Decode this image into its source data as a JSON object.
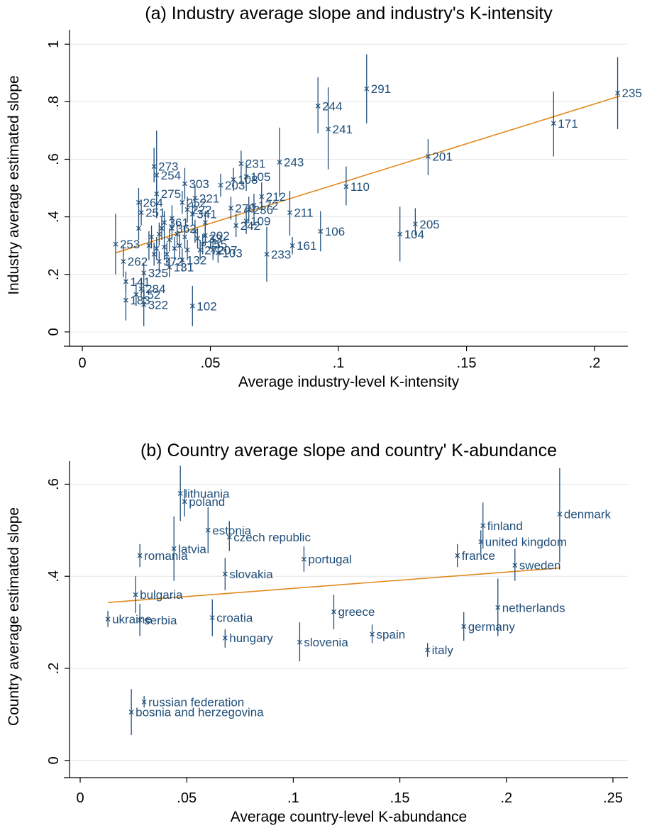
{
  "chart_data": [
    {
      "type": "scatter",
      "title": "(a) Industry average slope and industry's K-intensity",
      "xlabel": "Average industry-level K-intensity",
      "ylabel": "Industry average estimated slope",
      "xlim": [
        -0.005,
        0.213
      ],
      "ylim": [
        -0.03,
        1.05
      ],
      "xticks": [
        0,
        0.05,
        0.1,
        0.15,
        0.2
      ],
      "xtick_labels": [
        "0",
        ".05",
        ".1",
        ".15",
        ".2"
      ],
      "yticks": [
        0,
        0.2,
        0.4,
        0.6,
        0.8,
        1
      ],
      "ytick_labels": [
        "0",
        ".2",
        ".4",
        ".6",
        ".8",
        "1"
      ],
      "grid": true,
      "colors": {
        "points": "#1f4e79",
        "fit": "#e08a1e",
        "grid": "#e6e6e6"
      },
      "fit_line": {
        "x": [
          0.013,
          0.21
        ],
        "y": [
          0.275,
          0.82
        ]
      },
      "points": [
        {
          "label": "235",
          "x": 0.209,
          "y": 0.83,
          "lo": 0.705,
          "hi": 0.955
        },
        {
          "label": "171",
          "x": 0.184,
          "y": 0.725,
          "lo": 0.61,
          "hi": 0.835
        },
        {
          "label": "201",
          "x": 0.135,
          "y": 0.61,
          "lo": 0.545,
          "hi": 0.67
        },
        {
          "label": "205",
          "x": 0.13,
          "y": 0.375,
          "lo": 0.335,
          "hi": 0.43
        },
        {
          "label": "104",
          "x": 0.124,
          "y": 0.34,
          "lo": 0.245,
          "hi": 0.435
        },
        {
          "label": "291",
          "x": 0.111,
          "y": 0.845,
          "lo": 0.725,
          "hi": 0.965
        },
        {
          "label": "110",
          "x": 0.103,
          "y": 0.505,
          "lo": 0.44,
          "hi": 0.575
        },
        {
          "label": "244",
          "x": 0.092,
          "y": 0.785,
          "lo": 0.69,
          "hi": 0.885
        },
        {
          "label": "241",
          "x": 0.096,
          "y": 0.705,
          "lo": 0.565,
          "hi": 0.85
        },
        {
          "label": "106",
          "x": 0.093,
          "y": 0.35,
          "lo": 0.28,
          "hi": 0.42
        },
        {
          "label": "211",
          "x": 0.081,
          "y": 0.415,
          "lo": 0.335,
          "hi": 0.49
        },
        {
          "label": "161",
          "x": 0.082,
          "y": 0.3,
          "lo": 0.27,
          "hi": 0.33
        },
        {
          "label": "243",
          "x": 0.077,
          "y": 0.59,
          "lo": 0.47,
          "hi": 0.71
        },
        {
          "label": "233",
          "x": 0.072,
          "y": 0.27,
          "lo": 0.175,
          "hi": 0.365
        },
        {
          "label": "212",
          "x": 0.07,
          "y": 0.47,
          "lo": 0.42,
          "hi": 0.52
        },
        {
          "label": "172",
          "x": 0.067,
          "y": 0.44,
          "lo": 0.4,
          "hi": 0.48
        },
        {
          "label": "236",
          "x": 0.065,
          "y": 0.425,
          "lo": 0.38,
          "hi": 0.47
        },
        {
          "label": "109",
          "x": 0.064,
          "y": 0.385,
          "lo": 0.34,
          "hi": 0.43
        },
        {
          "label": "231",
          "x": 0.062,
          "y": 0.585,
          "lo": 0.535,
          "hi": 0.63
        },
        {
          "label": "105",
          "x": 0.064,
          "y": 0.54,
          "lo": 0.49,
          "hi": 0.59
        },
        {
          "label": "108",
          "x": 0.059,
          "y": 0.53,
          "lo": 0.49,
          "hi": 0.57
        },
        {
          "label": "203",
          "x": 0.054,
          "y": 0.51,
          "lo": 0.47,
          "hi": 0.55
        },
        {
          "label": "303",
          "x": 0.04,
          "y": 0.515,
          "lo": 0.46,
          "hi": 0.57
        },
        {
          "label": "279",
          "x": 0.058,
          "y": 0.43,
          "lo": 0.39,
          "hi": 0.47
        },
        {
          "label": "242",
          "x": 0.06,
          "y": 0.37,
          "lo": 0.33,
          "hi": 0.41
        },
        {
          "label": "221",
          "x": 0.044,
          "y": 0.465,
          "lo": 0.42,
          "hi": 0.51
        },
        {
          "label": "222",
          "x": 0.041,
          "y": 0.425,
          "lo": 0.38,
          "hi": 0.47
        },
        {
          "label": "273",
          "x": 0.028,
          "y": 0.575,
          "lo": 0.52,
          "hi": 0.64
        },
        {
          "label": "254",
          "x": 0.029,
          "y": 0.545,
          "lo": 0.395,
          "hi": 0.7
        },
        {
          "label": "275",
          "x": 0.029,
          "y": 0.48,
          "lo": 0.43,
          "hi": 0.53
        },
        {
          "label": "264",
          "x": 0.022,
          "y": 0.45,
          "lo": 0.4,
          "hi": 0.5
        },
        {
          "label": "251",
          "x": 0.023,
          "y": 0.415,
          "lo": 0.37,
          "hi": 0.46
        },
        {
          "label": "252",
          "x": 0.039,
          "y": 0.45,
          "lo": 0.41,
          "hi": 0.49
        },
        {
          "label": "341",
          "x": 0.043,
          "y": 0.41,
          "lo": 0.37,
          "hi": 0.45
        },
        {
          "label": "361",
          "x": 0.032,
          "y": 0.38,
          "lo": 0.34,
          "hi": 0.42
        },
        {
          "label": "362",
          "x": 0.035,
          "y": 0.36,
          "lo": 0.32,
          "hi": 0.4
        },
        {
          "label": "202",
          "x": 0.048,
          "y": 0.335,
          "lo": 0.3,
          "hi": 0.37
        },
        {
          "label": "133",
          "x": 0.045,
          "y": 0.325,
          "lo": 0.29,
          "hi": 0.36
        },
        {
          "label": "155",
          "x": 0.047,
          "y": 0.305,
          "lo": 0.27,
          "hi": 0.34
        },
        {
          "label": "272",
          "x": 0.046,
          "y": 0.285,
          "lo": 0.25,
          "hi": 0.32
        },
        {
          "label": "207",
          "x": 0.051,
          "y": 0.285,
          "lo": 0.25,
          "hi": 0.32
        },
        {
          "label": "103",
          "x": 0.053,
          "y": 0.275,
          "lo": 0.24,
          "hi": 0.31
        },
        {
          "label": "253",
          "x": 0.013,
          "y": 0.305,
          "lo": 0.2,
          "hi": 0.41
        },
        {
          "label": "262",
          "x": 0.016,
          "y": 0.245,
          "lo": 0.19,
          "hi": 0.3
        },
        {
          "label": "372",
          "x": 0.03,
          "y": 0.245,
          "lo": 0.21,
          "hi": 0.28
        },
        {
          "label": "132",
          "x": 0.039,
          "y": 0.25,
          "lo": 0.21,
          "hi": 0.29
        },
        {
          "label": "131",
          "x": 0.034,
          "y": 0.225,
          "lo": 0.19,
          "hi": 0.26
        },
        {
          "label": "325",
          "x": 0.024,
          "y": 0.205,
          "lo": 0.17,
          "hi": 0.24
        },
        {
          "label": "141",
          "x": 0.017,
          "y": 0.175,
          "lo": 0.14,
          "hi": 0.21
        },
        {
          "label": "284",
          "x": 0.023,
          "y": 0.15,
          "lo": 0.12,
          "hi": 0.18
        },
        {
          "label": "183",
          "x": 0.017,
          "y": 0.11,
          "lo": 0.04,
          "hi": 0.18
        },
        {
          "label": "152",
          "x": 0.021,
          "y": 0.13,
          "lo": 0.09,
          "hi": 0.17
        },
        {
          "label": "322",
          "x": 0.024,
          "y": 0.095,
          "lo": 0.02,
          "hi": 0.17
        },
        {
          "label": "102",
          "x": 0.043,
          "y": 0.09,
          "lo": 0.02,
          "hi": 0.16
        },
        {
          "label": "",
          "x": 0.022,
          "y": 0.36,
          "lo": 0.32,
          "hi": 0.4
        },
        {
          "label": "",
          "x": 0.026,
          "y": 0.3,
          "lo": 0.25,
          "hi": 0.35
        },
        {
          "label": "",
          "x": 0.027,
          "y": 0.33,
          "lo": 0.29,
          "hi": 0.37
        },
        {
          "label": "",
          "x": 0.028,
          "y": 0.27,
          "lo": 0.23,
          "hi": 0.31
        },
        {
          "label": "",
          "x": 0.029,
          "y": 0.29,
          "lo": 0.25,
          "hi": 0.33
        },
        {
          "label": "",
          "x": 0.03,
          "y": 0.34,
          "lo": 0.3,
          "hi": 0.38
        },
        {
          "label": "",
          "x": 0.031,
          "y": 0.36,
          "lo": 0.32,
          "hi": 0.4
        },
        {
          "label": "",
          "x": 0.032,
          "y": 0.295,
          "lo": 0.25,
          "hi": 0.34
        },
        {
          "label": "",
          "x": 0.033,
          "y": 0.27,
          "lo": 0.23,
          "hi": 0.31
        },
        {
          "label": "",
          "x": 0.034,
          "y": 0.32,
          "lo": 0.28,
          "hi": 0.36
        },
        {
          "label": "",
          "x": 0.035,
          "y": 0.395,
          "lo": 0.35,
          "hi": 0.44
        },
        {
          "label": "",
          "x": 0.036,
          "y": 0.29,
          "lo": 0.25,
          "hi": 0.33
        },
        {
          "label": "",
          "x": 0.037,
          "y": 0.34,
          "lo": 0.3,
          "hi": 0.38
        },
        {
          "label": "",
          "x": 0.038,
          "y": 0.3,
          "lo": 0.26,
          "hi": 0.34
        },
        {
          "label": "",
          "x": 0.04,
          "y": 0.33,
          "lo": 0.29,
          "hi": 0.37
        },
        {
          "label": "",
          "x": 0.041,
          "y": 0.285,
          "lo": 0.25,
          "hi": 0.32
        },
        {
          "label": "",
          "x": 0.044,
          "y": 0.35,
          "lo": 0.31,
          "hi": 0.39
        },
        {
          "label": "",
          "x": 0.048,
          "y": 0.38,
          "lo": 0.34,
          "hi": 0.42
        }
      ]
    },
    {
      "type": "scatter",
      "title": "(b) Country average slope and country' K-abundance",
      "xlabel": "Average country-level K-abundance",
      "ylabel": "Country average estimated slope",
      "xlim": [
        -0.005,
        0.257
      ],
      "ylim": [
        -0.025,
        0.65
      ],
      "xticks": [
        0,
        0.05,
        0.1,
        0.15,
        0.2,
        0.25
      ],
      "xtick_labels": [
        "0",
        ".05",
        ".1",
        ".15",
        ".2",
        ".25"
      ],
      "yticks": [
        0,
        0.2,
        0.4,
        0.6
      ],
      "ytick_labels": [
        "0",
        ".2",
        ".4",
        ".6"
      ],
      "grid": true,
      "colors": {
        "points": "#1f4e79",
        "fit": "#e08a1e",
        "grid": "#e6e6e6"
      },
      "fit_line": {
        "x": [
          0.013,
          0.225
        ],
        "y": [
          0.343,
          0.418
        ]
      },
      "points": [
        {
          "label": "lithuania",
          "x": 0.047,
          "y": 0.58,
          "lo": 0.52,
          "hi": 0.64
        },
        {
          "label": "poland",
          "x": 0.049,
          "y": 0.562,
          "lo": 0.53,
          "hi": 0.59
        },
        {
          "label": "estonia",
          "x": 0.06,
          "y": 0.5,
          "lo": 0.45,
          "hi": 0.55
        },
        {
          "label": "czech republic",
          "x": 0.07,
          "y": 0.485,
          "lo": 0.455,
          "hi": 0.52
        },
        {
          "label": "latvia",
          "x": 0.044,
          "y": 0.46,
          "lo": 0.39,
          "hi": 0.53
        },
        {
          "label": "romania",
          "x": 0.028,
          "y": 0.445,
          "lo": 0.42,
          "hi": 0.47
        },
        {
          "label": "slovakia",
          "x": 0.068,
          "y": 0.405,
          "lo": 0.37,
          "hi": 0.44
        },
        {
          "label": "portugal",
          "x": 0.105,
          "y": 0.437,
          "lo": 0.41,
          "hi": 0.465
        },
        {
          "label": "bulgaria",
          "x": 0.026,
          "y": 0.36,
          "lo": 0.32,
          "hi": 0.4
        },
        {
          "label": "ukraine",
          "x": 0.013,
          "y": 0.307,
          "lo": 0.29,
          "hi": 0.325
        },
        {
          "label": "serbia",
          "x": 0.028,
          "y": 0.305,
          "lo": 0.27,
          "hi": 0.34
        },
        {
          "label": "croatia",
          "x": 0.062,
          "y": 0.31,
          "lo": 0.27,
          "hi": 0.35
        },
        {
          "label": "hungary",
          "x": 0.068,
          "y": 0.266,
          "lo": 0.245,
          "hi": 0.285
        },
        {
          "label": "slovenia",
          "x": 0.103,
          "y": 0.257,
          "lo": 0.215,
          "hi": 0.3
        },
        {
          "label": "greece",
          "x": 0.119,
          "y": 0.323,
          "lo": 0.285,
          "hi": 0.36
        },
        {
          "label": "spain",
          "x": 0.137,
          "y": 0.274,
          "lo": 0.255,
          "hi": 0.295
        },
        {
          "label": "italy",
          "x": 0.163,
          "y": 0.24,
          "lo": 0.225,
          "hi": 0.255
        },
        {
          "label": "germany",
          "x": 0.18,
          "y": 0.291,
          "lo": 0.26,
          "hi": 0.322
        },
        {
          "label": "netherlands",
          "x": 0.196,
          "y": 0.332,
          "lo": 0.27,
          "hi": 0.395
        },
        {
          "label": "france",
          "x": 0.177,
          "y": 0.445,
          "lo": 0.42,
          "hi": 0.47
        },
        {
          "label": "finland",
          "x": 0.189,
          "y": 0.51,
          "lo": 0.46,
          "hi": 0.56
        },
        {
          "label": "united kingdom",
          "x": 0.188,
          "y": 0.475,
          "lo": 0.45,
          "hi": 0.5
        },
        {
          "label": "sweden",
          "x": 0.204,
          "y": 0.424,
          "lo": 0.39,
          "hi": 0.46
        },
        {
          "label": "denmark",
          "x": 0.225,
          "y": 0.535,
          "lo": 0.43,
          "hi": 0.635
        },
        {
          "label": "russian federation",
          "x": 0.03,
          "y": 0.127,
          "lo": 0.115,
          "hi": 0.14
        },
        {
          "label": "bosnia and herzegovina",
          "x": 0.024,
          "y": 0.105,
          "lo": 0.055,
          "hi": 0.155
        }
      ]
    }
  ]
}
